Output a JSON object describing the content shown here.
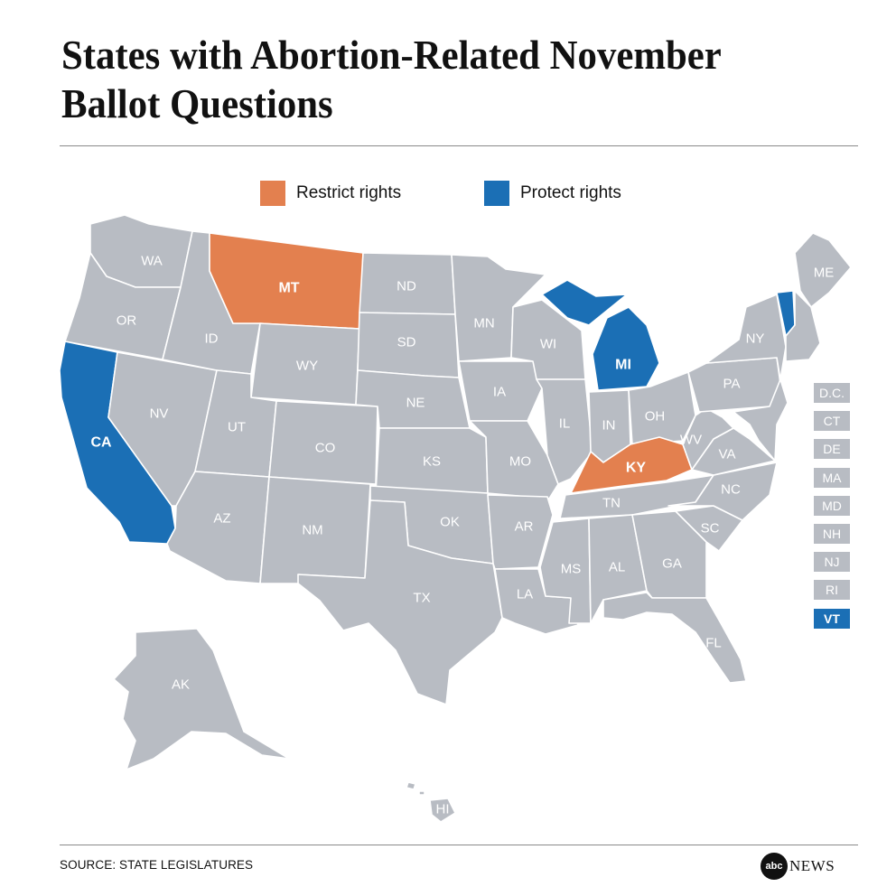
{
  "title": "States with Abortion-Related November Ballot Questions",
  "colors": {
    "restrict": "#e3804f",
    "protect": "#1b6fb5",
    "neutral": "#b8bcc3"
  },
  "legend": [
    {
      "label": "Restrict rights",
      "status": "restrict"
    },
    {
      "label": "Protect rights",
      "status": "protect"
    }
  ],
  "states": {
    "WA": {
      "label": "WA",
      "status": "neutral"
    },
    "OR": {
      "label": "OR",
      "status": "neutral"
    },
    "CA": {
      "label": "CA",
      "status": "protect"
    },
    "NV": {
      "label": "NV",
      "status": "neutral"
    },
    "ID": {
      "label": "ID",
      "status": "neutral"
    },
    "MT": {
      "label": "MT",
      "status": "restrict"
    },
    "WY": {
      "label": "WY",
      "status": "neutral"
    },
    "UT": {
      "label": "UT",
      "status": "neutral"
    },
    "AZ": {
      "label": "AZ",
      "status": "neutral"
    },
    "CO": {
      "label": "CO",
      "status": "neutral"
    },
    "NM": {
      "label": "NM",
      "status": "neutral"
    },
    "ND": {
      "label": "ND",
      "status": "neutral"
    },
    "SD": {
      "label": "SD",
      "status": "neutral"
    },
    "NE": {
      "label": "NE",
      "status": "neutral"
    },
    "KS": {
      "label": "KS",
      "status": "neutral"
    },
    "OK": {
      "label": "OK",
      "status": "neutral"
    },
    "TX": {
      "label": "TX",
      "status": "neutral"
    },
    "MN": {
      "label": "MN",
      "status": "neutral"
    },
    "IA": {
      "label": "IA",
      "status": "neutral"
    },
    "MO": {
      "label": "MO",
      "status": "neutral"
    },
    "AR": {
      "label": "AR",
      "status": "neutral"
    },
    "LA": {
      "label": "LA",
      "status": "neutral"
    },
    "WI": {
      "label": "WI",
      "status": "neutral"
    },
    "IL": {
      "label": "IL",
      "status": "neutral"
    },
    "MI": {
      "label": "MI",
      "status": "protect"
    },
    "IN": {
      "label": "IN",
      "status": "neutral"
    },
    "OH": {
      "label": "OH",
      "status": "neutral"
    },
    "KY": {
      "label": "KY",
      "status": "restrict"
    },
    "TN": {
      "label": "TN",
      "status": "neutral"
    },
    "MS": {
      "label": "MS",
      "status": "neutral"
    },
    "AL": {
      "label": "AL",
      "status": "neutral"
    },
    "GA": {
      "label": "GA",
      "status": "neutral"
    },
    "FL": {
      "label": "FL",
      "status": "neutral"
    },
    "SC": {
      "label": "SC",
      "status": "neutral"
    },
    "NC": {
      "label": "NC",
      "status": "neutral"
    },
    "VA": {
      "label": "VA",
      "status": "neutral"
    },
    "WV": {
      "label": "WV",
      "status": "neutral"
    },
    "PA": {
      "label": "PA",
      "status": "neutral"
    },
    "NY": {
      "label": "NY",
      "status": "neutral"
    },
    "VT": {
      "label": "VT",
      "status": "protect"
    },
    "ME": {
      "label": "ME",
      "status": "neutral"
    },
    "AK": {
      "label": "AK",
      "status": "neutral"
    },
    "HI": {
      "label": "HI",
      "status": "neutral"
    }
  },
  "small_states": [
    {
      "label": "D.C.",
      "status": "neutral"
    },
    {
      "label": "CT",
      "status": "neutral"
    },
    {
      "label": "DE",
      "status": "neutral"
    },
    {
      "label": "MA",
      "status": "neutral"
    },
    {
      "label": "MD",
      "status": "neutral"
    },
    {
      "label": "NH",
      "status": "neutral"
    },
    {
      "label": "NJ",
      "status": "neutral"
    },
    {
      "label": "RI",
      "status": "neutral"
    },
    {
      "label": "VT",
      "status": "protect"
    }
  ],
  "source": "SOURCE: STATE LEGISLATURES",
  "logo": {
    "mark": "abc",
    "word": "NEWS"
  }
}
